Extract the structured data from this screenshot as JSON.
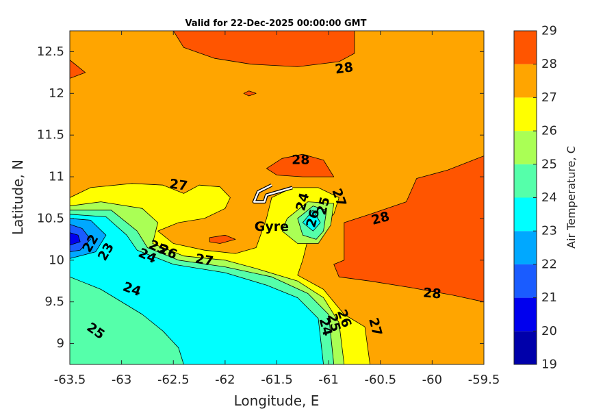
{
  "chart_data": {
    "type": "contour",
    "title": "Valid for 22-Dec-2025 00:00:00 GMT",
    "xlabel": "Longitude, E",
    "ylabel": "Latitude, N",
    "xlim": [
      -63.5,
      -59.5
    ],
    "ylim": [
      8.75,
      12.75
    ],
    "x_ticks": [
      -63.5,
      -63,
      -62.5,
      -62,
      -61.5,
      -61,
      -60.5,
      -60,
      -59.5
    ],
    "x_tick_labels": [
      "-63.5",
      "-63",
      "-62.5",
      "-62",
      "-61.5",
      "-61",
      "-60.5",
      "-60",
      "-59.5"
    ],
    "y_ticks": [
      9,
      9.5,
      10,
      10.5,
      11,
      11.5,
      12,
      12.5
    ],
    "y_tick_labels": [
      "9",
      "9.5",
      "10",
      "10.5",
      "11",
      "11.5",
      "12",
      "12.5"
    ],
    "colorbar": {
      "label": "Air Temperature, C",
      "ticks": [
        19,
        20,
        21,
        22,
        23,
        24,
        25,
        26,
        27,
        28,
        29
      ],
      "tick_labels": [
        "19",
        "20",
        "21",
        "22",
        "23",
        "24",
        "25",
        "26",
        "27",
        "28",
        "29"
      ],
      "range": [
        19,
        29
      ],
      "colors": [
        "#0000aa",
        "#0000ee",
        "#1a5cff",
        "#00a8ff",
        "#00ffff",
        "#55ffaa",
        "#aaff55",
        "#ffff00",
        "#ffa500",
        "#ff5500",
        "#ff0000"
      ]
    },
    "regions": [
      {
        "level": 28,
        "points": [
          [
            -62.5,
            12.75
          ],
          [
            -62.4,
            12.55
          ],
          [
            -62.1,
            12.42
          ],
          [
            -61.75,
            12.35
          ],
          [
            -61.3,
            12.32
          ],
          [
            -60.9,
            12.38
          ],
          [
            -60.75,
            12.48
          ],
          [
            -60.75,
            12.75
          ]
        ]
      },
      {
        "level": 28,
        "points": [
          [
            -63.5,
            12.4
          ],
          [
            -63.35,
            12.25
          ],
          [
            -63.5,
            12.18
          ]
        ]
      },
      {
        "level": 28,
        "points": [
          [
            -59.5,
            11.25
          ],
          [
            -59.85,
            11.08
          ],
          [
            -60.15,
            10.98
          ],
          [
            -60.25,
            10.7
          ],
          [
            -60.6,
            10.55
          ],
          [
            -60.85,
            10.45
          ],
          [
            -60.85,
            10.0
          ],
          [
            -60.95,
            9.95
          ],
          [
            -60.9,
            9.8
          ],
          [
            -60.6,
            9.75
          ],
          [
            -60.2,
            9.67
          ],
          [
            -59.8,
            9.58
          ],
          [
            -59.5,
            9.5
          ]
        ]
      },
      {
        "level": 28,
        "points": [
          [
            -61.6,
            11.1
          ],
          [
            -61.45,
            11.22
          ],
          [
            -61.25,
            11.27
          ],
          [
            -61.05,
            11.2
          ],
          [
            -60.95,
            11.0
          ],
          [
            -61.25,
            11.0
          ],
          [
            -61.5,
            11.02
          ]
        ]
      },
      {
        "level": 28,
        "points": [
          [
            -62.15,
            10.27
          ],
          [
            -62.0,
            10.3
          ],
          [
            -61.9,
            10.25
          ],
          [
            -62.05,
            10.2
          ],
          [
            -62.15,
            10.22
          ]
        ]
      },
      {
        "level": 26,
        "points": [
          [
            -63.5,
            10.75
          ],
          [
            -63.3,
            10.87
          ],
          [
            -62.9,
            10.92
          ],
          [
            -62.6,
            10.9
          ],
          [
            -62.4,
            10.8
          ],
          [
            -62.25,
            10.9
          ],
          [
            -62.05,
            10.88
          ],
          [
            -61.95,
            10.75
          ],
          [
            -62.0,
            10.62
          ],
          [
            -62.2,
            10.5
          ],
          [
            -62.45,
            10.45
          ],
          [
            -62.65,
            10.35
          ],
          [
            -62.5,
            10.2
          ],
          [
            -62.2,
            10.12
          ],
          [
            -61.9,
            10.08
          ],
          [
            -61.7,
            10.15
          ],
          [
            -61.6,
            10.5
          ],
          [
            -61.55,
            10.75
          ],
          [
            -61.35,
            10.87
          ],
          [
            -61.1,
            10.87
          ],
          [
            -60.9,
            10.75
          ],
          [
            -60.95,
            10.55
          ],
          [
            -61.1,
            10.4
          ],
          [
            -61.2,
            10.25
          ],
          [
            -61.25,
            10.0
          ],
          [
            -61.3,
            9.82
          ],
          [
            -61.05,
            9.65
          ],
          [
            -60.85,
            9.35
          ],
          [
            -60.65,
            9.2
          ],
          [
            -60.6,
            8.75
          ],
          [
            -63.5,
            8.75
          ]
        ]
      },
      {
        "level": 25,
        "points": [
          [
            -63.5,
            10.65
          ],
          [
            -63.2,
            10.7
          ],
          [
            -62.8,
            10.62
          ],
          [
            -62.65,
            10.45
          ],
          [
            -62.7,
            10.2
          ],
          [
            -62.4,
            10.05
          ],
          [
            -62.0,
            10.0
          ],
          [
            -61.7,
            9.9
          ],
          [
            -61.3,
            9.75
          ],
          [
            -61.05,
            9.55
          ],
          [
            -60.9,
            9.25
          ],
          [
            -60.85,
            8.75
          ],
          [
            -63.5,
            8.75
          ]
        ]
      },
      {
        "level": 25,
        "points": [
          [
            -61.4,
            10.5
          ],
          [
            -61.2,
            10.7
          ],
          [
            -60.95,
            10.68
          ],
          [
            -60.98,
            10.42
          ],
          [
            -61.1,
            10.2
          ],
          [
            -61.3,
            10.2
          ],
          [
            -61.45,
            10.35
          ]
        ]
      },
      {
        "level": 24,
        "points": [
          [
            -63.5,
            10.6
          ],
          [
            -63.1,
            10.6
          ],
          [
            -62.85,
            10.35
          ],
          [
            -62.75,
            10.15
          ],
          [
            -62.45,
            10.0
          ],
          [
            -62.0,
            9.92
          ],
          [
            -61.55,
            9.8
          ],
          [
            -61.2,
            9.6
          ],
          [
            -61.0,
            9.35
          ],
          [
            -60.95,
            8.75
          ],
          [
            -63.5,
            8.75
          ]
        ]
      },
      {
        "level": 24,
        "points": [
          [
            -61.3,
            10.5
          ],
          [
            -61.15,
            10.65
          ],
          [
            -61.02,
            10.6
          ],
          [
            -61.05,
            10.35
          ],
          [
            -61.12,
            10.25
          ],
          [
            -61.25,
            10.3
          ]
        ]
      },
      {
        "level": 23,
        "points": [
          [
            -63.5,
            10.55
          ],
          [
            -63.15,
            10.52
          ],
          [
            -62.95,
            10.3
          ],
          [
            -62.85,
            10.12
          ],
          [
            -62.5,
            9.95
          ],
          [
            -62.0,
            9.85
          ],
          [
            -61.6,
            9.7
          ],
          [
            -61.3,
            9.55
          ],
          [
            -61.1,
            9.3
          ],
          [
            -61.05,
            8.75
          ],
          [
            -62.4,
            8.75
          ],
          [
            -62.45,
            8.95
          ],
          [
            -62.6,
            9.15
          ],
          [
            -62.8,
            9.35
          ],
          [
            -63.2,
            9.65
          ],
          [
            -63.5,
            9.8
          ]
        ]
      },
      {
        "level": 23,
        "points": [
          [
            -61.25,
            10.45
          ],
          [
            -61.15,
            10.6
          ],
          [
            -61.08,
            10.45
          ],
          [
            -61.15,
            10.35
          ]
        ]
      },
      {
        "level": 22,
        "points": [
          [
            -63.5,
            10.5
          ],
          [
            -63.3,
            10.48
          ],
          [
            -63.15,
            10.3
          ],
          [
            -63.25,
            10.1
          ],
          [
            -63.5,
            10.02
          ]
        ]
      },
      {
        "level": 21,
        "points": [
          [
            -63.5,
            10.43
          ],
          [
            -63.38,
            10.38
          ],
          [
            -63.3,
            10.25
          ],
          [
            -63.4,
            10.12
          ],
          [
            -63.5,
            10.1
          ]
        ]
      },
      {
        "level": 20,
        "points": [
          [
            -63.5,
            10.33
          ],
          [
            -63.42,
            10.3
          ],
          [
            -63.4,
            10.22
          ],
          [
            -63.5,
            10.18
          ]
        ]
      },
      {
        "level": 28,
        "points": [
          [
            -61.82,
            12.0
          ],
          [
            -61.77,
            12.03
          ],
          [
            -61.7,
            12.0
          ],
          [
            -61.77,
            11.97
          ]
        ]
      }
    ],
    "contour_labels": [
      {
        "text": "28",
        "x": -60.85,
        "y": 12.3,
        "rotate": -8
      },
      {
        "text": "28",
        "x": -61.27,
        "y": 11.2,
        "rotate": 0
      },
      {
        "text": "28",
        "x": -60.5,
        "y": 10.5,
        "rotate": -15
      },
      {
        "text": "28",
        "x": -60.0,
        "y": 9.6,
        "rotate": 5
      },
      {
        "text": "27",
        "x": -62.45,
        "y": 10.9,
        "rotate": 8
      },
      {
        "text": "27",
        "x": -62.2,
        "y": 10.0,
        "rotate": 10
      },
      {
        "text": "27",
        "x": -60.9,
        "y": 10.75,
        "rotate": 70
      },
      {
        "text": "27",
        "x": -60.55,
        "y": 9.2,
        "rotate": 75
      },
      {
        "text": "26",
        "x": -62.55,
        "y": 10.1,
        "rotate": 25
      },
      {
        "text": "26",
        "x": -61.15,
        "y": 10.5,
        "rotate": -75
      },
      {
        "text": "26",
        "x": -60.85,
        "y": 9.3,
        "rotate": 70
      },
      {
        "text": "25",
        "x": -63.25,
        "y": 9.15,
        "rotate": 35
      },
      {
        "text": "25",
        "x": -62.65,
        "y": 10.15,
        "rotate": 25
      },
      {
        "text": "25",
        "x": -61.05,
        "y": 10.65,
        "rotate": -75
      },
      {
        "text": "25",
        "x": -60.95,
        "y": 9.25,
        "rotate": 75
      },
      {
        "text": "24",
        "x": -62.9,
        "y": 9.65,
        "rotate": 20
      },
      {
        "text": "24",
        "x": -62.75,
        "y": 10.05,
        "rotate": 25
      },
      {
        "text": "24",
        "x": -61.25,
        "y": 10.7,
        "rotate": -75
      },
      {
        "text": "24",
        "x": -61.03,
        "y": 9.2,
        "rotate": 75
      },
      {
        "text": "23",
        "x": -63.15,
        "y": 10.1,
        "rotate": -60
      },
      {
        "text": "22",
        "x": -63.3,
        "y": 10.2,
        "rotate": -60
      }
    ],
    "annotation": {
      "text": "Gyre",
      "x": -61.55,
      "y": 10.4
    },
    "gyre_path": [
      [
        -61.55,
        10.9
      ],
      [
        -61.68,
        10.82
      ],
      [
        -61.72,
        10.7
      ],
      [
        -61.62,
        10.7
      ],
      [
        -61.6,
        10.78
      ],
      [
        -61.35,
        10.87
      ]
    ]
  }
}
